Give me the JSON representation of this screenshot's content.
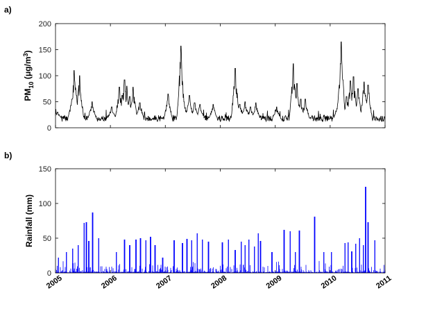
{
  "chart_data": [
    {
      "type": "line",
      "panel_label": "a)",
      "ylabel": "PM",
      "ylabel_sub": "10",
      "ylabel_unit_pre": " (μg/m",
      "ylabel_unit_sup": "3",
      "ylabel_unit_post": ")",
      "ylim": [
        0,
        200
      ],
      "yticks": [
        "0",
        "50",
        "100",
        "150",
        "200"
      ],
      "xlim": [
        "2005-01-01",
        "2011-01-01"
      ],
      "grid": false,
      "series": [
        {
          "color": "#000000",
          "baseline": 18,
          "x": [
            "2005-01-15",
            "2005-04-20",
            "2005-05-05",
            "2005-05-20",
            "2005-06-10",
            "2005-09-01",
            "2006-01-10",
            "2006-03-01",
            "2006-03-20",
            "2006-04-05",
            "2006-04-20",
            "2006-05-10",
            "2006-06-01",
            "2006-07-15",
            "2007-01-20",
            "2007-04-15",
            "2007-05-05",
            "2007-06-10",
            "2007-07-15",
            "2007-08-20",
            "2007-11-15",
            "2008-04-10",
            "2008-05-10",
            "2008-06-15",
            "2008-07-20",
            "2008-08-25",
            "2009-01-10",
            "2009-05-01",
            "2009-05-25",
            "2009-06-20",
            "2009-07-20",
            "2010-02-20",
            "2010-03-15",
            "2010-04-20",
            "2010-05-15",
            "2010-06-05",
            "2010-07-05",
            "2010-08-15",
            "2010-09-10"
          ],
          "y": [
            30,
            55,
            110,
            62,
            100,
            50,
            40,
            78,
            62,
            92,
            80,
            60,
            78,
            48,
            65,
            157,
            50,
            62,
            48,
            45,
            45,
            114,
            45,
            50,
            40,
            48,
            40,
            123,
            85,
            55,
            55,
            45,
            165,
            60,
            90,
            98,
            75,
            88,
            82
          ]
        }
      ]
    },
    {
      "type": "line",
      "panel_label": "b)",
      "ylabel": "Rainfall (mm)",
      "ylim": [
        0,
        150
      ],
      "yticks": [
        "0",
        "50",
        "100",
        "150"
      ],
      "xlim": [
        "2005-01-01",
        "2011-01-01"
      ],
      "xticks": [
        "2005",
        "2006",
        "2007",
        "2008",
        "2009",
        "2010",
        "2011"
      ],
      "grid": false,
      "series": [
        {
          "color": "#0000ff",
          "baseline": 0,
          "x": [
            "2005-01-20",
            "2005-03-15",
            "2005-04-25",
            "2005-06-01",
            "2005-07-10",
            "2005-07-25",
            "2005-08-10",
            "2005-09-05",
            "2005-10-15",
            "2006-02-10",
            "2006-04-05",
            "2006-05-10",
            "2006-06-20",
            "2006-07-20",
            "2006-08-25",
            "2006-09-25",
            "2006-10-25",
            "2006-12-15",
            "2007-03-01",
            "2007-04-25",
            "2007-05-25",
            "2007-06-25",
            "2007-08-01",
            "2007-09-05",
            "2007-10-15",
            "2008-01-15",
            "2008-02-25",
            "2008-04-10",
            "2008-05-20",
            "2008-06-15",
            "2008-07-10",
            "2008-08-15",
            "2008-09-10",
            "2008-09-25",
            "2008-12-10",
            "2009-03-01",
            "2009-04-10",
            "2009-05-15",
            "2009-06-10",
            "2009-09-20",
            "2009-11-20",
            "2010-01-10",
            "2010-04-10",
            "2010-05-01",
            "2010-05-25",
            "2010-06-20",
            "2010-07-15",
            "2010-08-10",
            "2010-08-25",
            "2010-09-10",
            "2010-10-25"
          ],
          "y": [
            22,
            30,
            35,
            40,
            72,
            73,
            46,
            87,
            50,
            30,
            48,
            40,
            48,
            50,
            47,
            52,
            40,
            22,
            47,
            43,
            49,
            47,
            57,
            48,
            45,
            44,
            48,
            33,
            45,
            40,
            48,
            38,
            57,
            46,
            30,
            62,
            60,
            30,
            61,
            81,
            30,
            30,
            43,
            44,
            31,
            42,
            50,
            40,
            124,
            73,
            47
          ]
        }
      ]
    }
  ]
}
